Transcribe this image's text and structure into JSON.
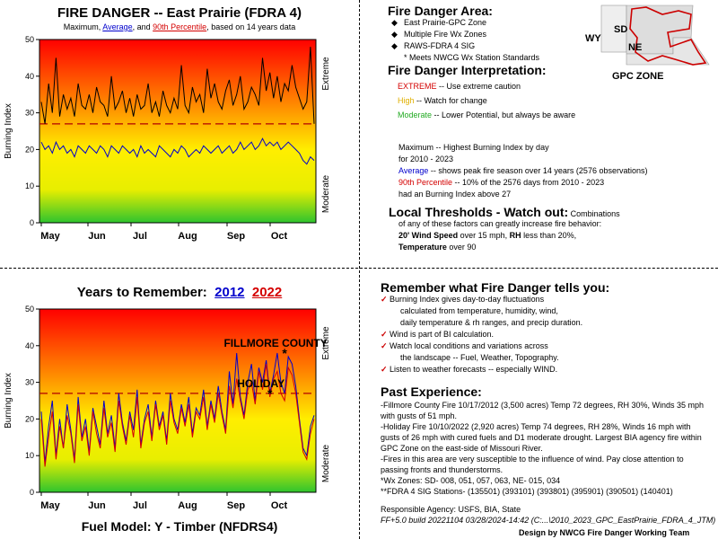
{
  "top": {
    "title": "FIRE DANGER -- East Prairie (FDRA 4)",
    "subtitle_parts": [
      "Maximum, ",
      "Average",
      ", and ",
      "90th Percentile",
      ", based on 14 years data"
    ]
  },
  "bottom": {
    "title_prefix": "Years to Remember:",
    "year_a": "2012",
    "year_b": "2022",
    "fuel_model": "Fuel Model: Y - Timber (NFDRS4)"
  },
  "chart_data": [
    {
      "type": "line",
      "title": "FIRE DANGER -- East Prairie (FDRA 4)",
      "ylabel": "Burning Index",
      "xlabel": "",
      "ylim": [
        0,
        50
      ],
      "yticks": [
        0,
        10,
        20,
        30,
        40,
        50
      ],
      "xticks": [
        "May",
        "Jun",
        "Jul",
        "Aug",
        "Sep",
        "Oct"
      ],
      "zones": [
        "Extreme",
        "Moderate"
      ],
      "percentile_90": 27,
      "series": [
        {
          "name": "Maximum",
          "color": "#000000",
          "values": [
            33,
            27,
            38,
            30,
            45,
            29,
            35,
            31,
            34,
            29,
            38,
            32,
            31,
            35,
            30,
            37,
            33,
            32,
            29,
            40,
            31,
            33,
            36,
            30,
            34,
            29,
            35,
            31,
            32,
            38,
            30,
            33,
            29,
            36,
            32,
            30,
            34,
            31,
            43,
            32,
            30,
            37,
            33,
            35,
            30,
            42,
            34,
            38,
            33,
            31,
            36,
            39,
            32,
            35,
            40,
            31,
            33,
            37,
            35,
            32,
            45,
            36,
            41,
            34,
            40,
            33,
            38,
            36,
            43,
            37,
            34,
            31,
            33,
            48,
            27
          ]
        },
        {
          "name": "Average",
          "color": "#0000cc",
          "values": [
            22,
            20,
            21,
            19,
            22,
            20,
            21,
            19,
            20,
            18,
            21,
            20,
            19,
            21,
            20,
            19,
            21,
            20,
            18,
            21,
            20,
            19,
            21,
            20,
            19,
            20,
            18,
            21,
            19,
            20,
            19,
            18,
            21,
            20,
            19,
            18,
            20,
            19,
            21,
            20,
            18,
            19,
            20,
            19,
            21,
            20,
            19,
            20,
            21,
            19,
            20,
            21,
            19,
            20,
            22,
            20,
            21,
            22,
            20,
            21,
            23,
            21,
            22,
            21,
            22,
            20,
            21,
            22,
            21,
            20,
            19,
            17,
            16,
            18,
            17
          ]
        }
      ]
    },
    {
      "type": "line",
      "title": "Years to Remember: 2012 2022",
      "ylabel": "Burning Index",
      "xlabel": "",
      "ylim": [
        0,
        50
      ],
      "yticks": [
        0,
        10,
        20,
        30,
        40,
        50
      ],
      "xticks": [
        "May",
        "Jun",
        "Jul",
        "Aug",
        "Sep",
        "Oct"
      ],
      "zones": [
        "Extreme",
        "Moderate"
      ],
      "percentile_90": 27,
      "annotations": [
        {
          "label": "FILLMORE COUNTY",
          "x_index": 66,
          "y": 38
        },
        {
          "label": "HOLIDAY",
          "x_index": 62,
          "y": 27
        }
      ],
      "series": [
        {
          "name": "2012",
          "color": "#0000cc",
          "values": [
            22,
            8,
            18,
            25,
            10,
            20,
            12,
            24,
            17,
            9,
            26,
            15,
            20,
            11,
            23,
            18,
            13,
            25,
            16,
            21,
            12,
            27,
            19,
            14,
            22,
            17,
            28,
            13,
            20,
            24,
            15,
            25,
            18,
            22,
            14,
            27,
            20,
            17,
            24,
            19,
            26,
            16,
            23,
            21,
            28,
            18,
            25,
            20,
            29,
            22,
            17,
            33,
            24,
            38,
            26,
            21,
            30,
            35,
            25,
            34,
            30,
            36,
            27,
            32,
            38,
            30,
            27,
            37,
            35,
            29,
            20,
            12,
            10,
            18,
            21
          ]
        },
        {
          "name": "2022",
          "color": "#d40000",
          "values": [
            20,
            7,
            15,
            22,
            9,
            18,
            12,
            21,
            16,
            8,
            24,
            14,
            18,
            10,
            22,
            16,
            12,
            23,
            15,
            19,
            11,
            25,
            18,
            13,
            21,
            15,
            26,
            12,
            19,
            22,
            14,
            24,
            17,
            21,
            13,
            25,
            19,
            16,
            23,
            18,
            24,
            15,
            22,
            20,
            26,
            17,
            24,
            19,
            27,
            21,
            16,
            29,
            23,
            31,
            25,
            20,
            28,
            30,
            24,
            33,
            28,
            35,
            26,
            31,
            33,
            27,
            25,
            34,
            32,
            27,
            19,
            11,
            9,
            16,
            20
          ]
        }
      ]
    }
  ],
  "area": {
    "heading": "Fire Danger Area:",
    "items": [
      "East Prairie-GPC Zone",
      "Multiple Fire Wx Zones",
      "RAWS-FDRA 4 SIG"
    ],
    "note": "* Meets NWCG Wx Station Standards",
    "map": {
      "wy": "WY",
      "sd": "SD",
      "ne": "NE",
      "zone": "GPC ZONE"
    }
  },
  "interp": {
    "heading": "Fire Danger Interpretation:",
    "extreme_word": "EXTREME",
    "extreme_text": " -- Use extreme caution",
    "high_word": "High",
    "high_text": " -- Watch for change",
    "moderate_word": "Moderate",
    "moderate_text": " -- Lower Potential, but always be aware"
  },
  "defs": {
    "max_line1": "Maximum  -- Highest Burning Index by day",
    "max_line2": "for 2010 - 2023",
    "avg_word": "Average",
    "avg_text": " -- shows peak fire season over 14 years (2576 observations)",
    "pct_word": "90th Percentile",
    "pct_text": "  -- 10% of the 2576 days from 2010 - 2023",
    "pct_line2": "had an Burning Index above 27"
  },
  "thresholds": {
    "heading": "Local Thresholds - Watch out:",
    "heading_tail": "  Combinations",
    "line2": "of any of these factors can greatly increase fire behavior:",
    "wind_bold": "20' Wind Speed",
    "wind_text": " over 15 mph, ",
    "rh_bold": "RH",
    "rh_text": "  less than 20%,",
    "temp_bold": "Temperature",
    "temp_text": " over 90"
  },
  "remember": {
    "heading": "Remember what Fire Danger tells you:",
    "l1": "Burning Index gives day-to-day fluctuations",
    "l2": "calculated from temperature, humidity, wind,",
    "l3": "daily temperature & rh ranges, and precip duration.",
    "l4": "Wind is part of BI calculation.",
    "l5": "Watch local conditions and variations across",
    "l6": "the landscape -- Fuel, Weather, Topography.",
    "l7": "Listen to weather forecasts -- especially WIND."
  },
  "past": {
    "heading": "Past Experience:",
    "p1": "-Fillmore County Fire 10/17/2012 (3,500 acres) Temp 72 degrees, RH 30%, Winds 35 mph with gusts of 51 mph.",
    "p2": "-Holiday Fire 10/10/2022 (2,920 acres) Temp 74 degrees, RH 28%, Winds 16 mph with gusts of 26 mph with cured fuels and D1 moderate drought. Largest BIA agency fire within GPC Zone on the east-side of Missouri River.",
    "p3": "-Fires in this area are very susceptible to the influence of wind. Pay close attention to passing fronts and thunderstorms.",
    "p4": "*Wx Zones: SD- 008, 051, 057, 063, NE- 015, 034",
    "p5": "**FDRA 4 SIG Stations- (135501) (393101) (393801) (395901) (390501) (140401)"
  },
  "footer": {
    "agency": "Responsible Agency: USFS, BIA, State",
    "build": "FF+5.0 build 20221104 03/28/2024-14:42 (C:...\\2010_2023_GPC_EastPrairie_FDRA_4_JTM)",
    "design": "Design by NWCG Fire Danger Working Team"
  }
}
